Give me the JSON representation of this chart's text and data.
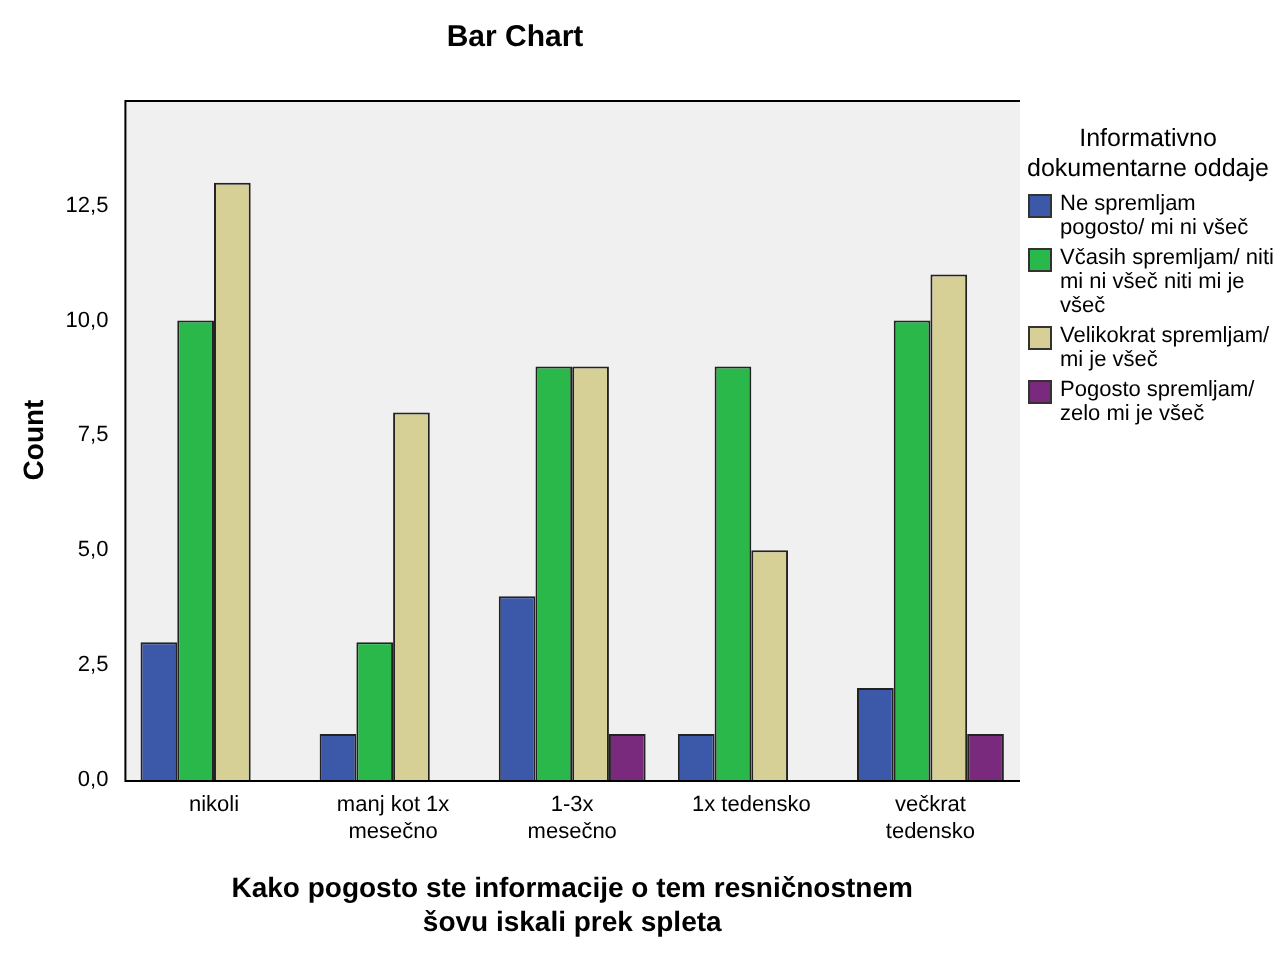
{
  "chart_data": {
    "type": "bar",
    "title": "Bar Chart",
    "xlabel": "Kako pogosto ste informacije o tem resničnostnem šovu iskali prek spleta",
    "ylabel": "Count",
    "legend_title": "Informativno dokumentarne oddaje",
    "legend": "right",
    "grid": false,
    "categories": [
      "nikoli",
      "manj kot 1x mesečno",
      "1-3x mesečno",
      "1x tedensko",
      "večkrat tedensko"
    ],
    "ylim": [
      0,
      14.8
    ],
    "yticks": [
      {
        "value": 0,
        "label": "0,0"
      },
      {
        "value": 2.5,
        "label": "2,5"
      },
      {
        "value": 5,
        "label": "5,0"
      },
      {
        "value": 7.5,
        "label": "7,5"
      },
      {
        "value": 10,
        "label": "10,0"
      },
      {
        "value": 12.5,
        "label": "12,5"
      }
    ],
    "series": [
      {
        "name": "Ne spremljam pogosto/ mi ni všeč",
        "color": "#3c58a8",
        "values": [
          3,
          1,
          4,
          1,
          2
        ]
      },
      {
        "name": "Včasih spremljam/ niti mi ni všeč niti mi je všeč",
        "color": "#2ab84b",
        "values": [
          10,
          3,
          9,
          9,
          10
        ]
      },
      {
        "name": "Velikokrat spremljam/ mi je všeč",
        "color": "#d6d097",
        "values": [
          13,
          8,
          9,
          5,
          11
        ]
      },
      {
        "name": "Pogosto spremljam/ zelo mi je všeč",
        "color": "#7a2a7c",
        "values": [
          null,
          null,
          1,
          null,
          1
        ]
      }
    ]
  }
}
